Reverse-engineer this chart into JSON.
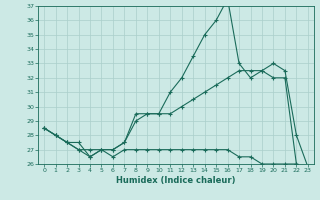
{
  "xlabel": "Humidex (Indice chaleur)",
  "background_color": "#cce9e5",
  "grid_color": "#aacfcb",
  "line_color": "#1a6b5a",
  "x": [
    0,
    1,
    2,
    3,
    4,
    5,
    6,
    7,
    8,
    9,
    10,
    11,
    12,
    13,
    14,
    15,
    16,
    17,
    18,
    19,
    20,
    21,
    22,
    23
  ],
  "line1": [
    28.5,
    28.0,
    27.5,
    27.0,
    26.5,
    27.0,
    27.0,
    27.5,
    29.5,
    29.5,
    29.5,
    29.5,
    30.0,
    30.5,
    31.0,
    31.5,
    32.0,
    32.5,
    32.5,
    32.5,
    32.0,
    32.0,
    26.0,
    25.8
  ],
  "line2": [
    28.5,
    28.0,
    27.5,
    27.0,
    27.0,
    27.0,
    27.0,
    27.5,
    29.0,
    29.5,
    29.5,
    31.0,
    32.0,
    33.5,
    35.0,
    36.0,
    37.5,
    33.0,
    32.0,
    32.5,
    33.0,
    32.5,
    28.0,
    25.8
  ],
  "line3": [
    28.5,
    28.0,
    27.5,
    27.5,
    26.5,
    27.0,
    26.5,
    27.0,
    27.0,
    27.0,
    27.0,
    27.0,
    27.0,
    27.0,
    27.0,
    27.0,
    27.0,
    26.5,
    26.5,
    26.0,
    26.0,
    26.0,
    26.0,
    25.8
  ],
  "ylim": [
    26,
    37
  ],
  "yticks": [
    26,
    27,
    28,
    29,
    30,
    31,
    32,
    33,
    34,
    35,
    36,
    37
  ],
  "xticks": [
    0,
    1,
    2,
    3,
    4,
    5,
    6,
    7,
    8,
    9,
    10,
    11,
    12,
    13,
    14,
    15,
    16,
    17,
    18,
    19,
    20,
    21,
    22,
    23
  ]
}
